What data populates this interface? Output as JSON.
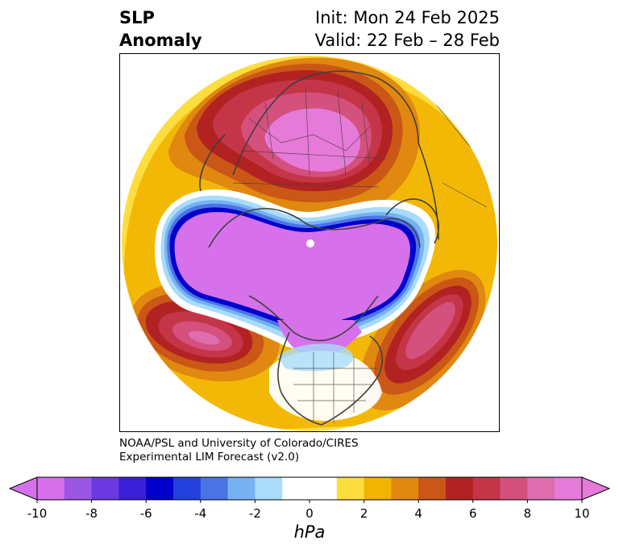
{
  "title": {
    "left_line1": "SLP",
    "left_line2": "Anomaly",
    "right_line1": "Init: Mon 24 Feb 2025",
    "right_line2": "Valid: 22 Feb – 28 Feb"
  },
  "credit": {
    "line1": "NOAA/PSL and University of Colorado/CIRES",
    "line2": "Experimental LIM Forecast (v2.0)"
  },
  "colorbar": {
    "unit": "hPa",
    "ticks": [
      "-10",
      "-8",
      "-6",
      "-4",
      "-2",
      "0",
      "2",
      "4",
      "6",
      "8",
      "10"
    ],
    "colors": [
      "#d671eb",
      "#9d55e3",
      "#6a3ae0",
      "#3a1fd6",
      "#0000cd",
      "#2340dc",
      "#4a74e6",
      "#77b2f2",
      "#a8dcfa",
      "#ffffff",
      "#ffffff",
      "#fedd3f",
      "#f2b400",
      "#e08810",
      "#ca5716",
      "#b22222",
      "#c53548",
      "#d4507d",
      "#de6db0",
      "#e67ad8"
    ],
    "min_color": "#d671eb",
    "max_color": "#e67ad8"
  },
  "map": {
    "projection": "north-polar-stereographic",
    "variable": "sea-level pressure anomaly"
  }
}
